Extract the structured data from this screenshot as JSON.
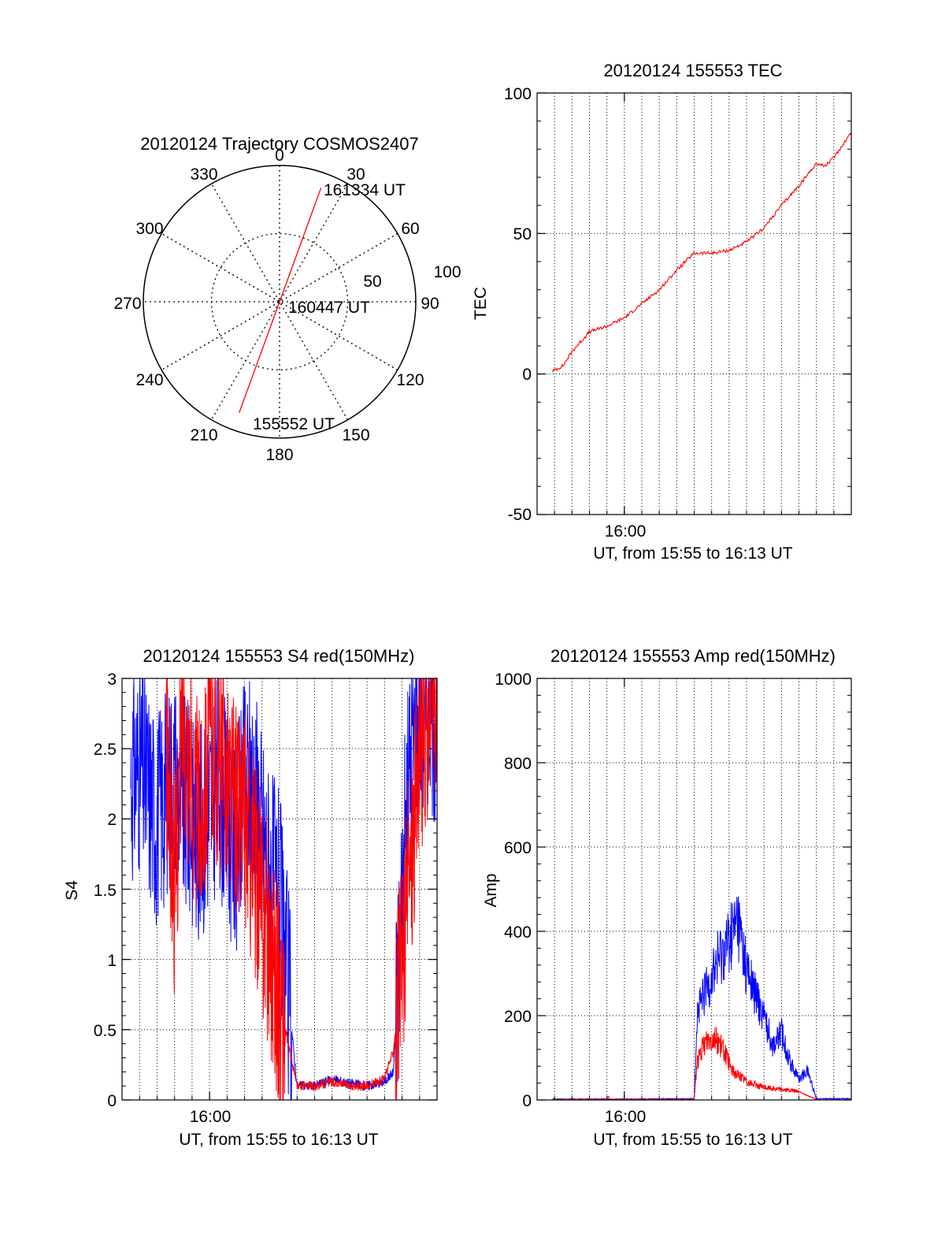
{
  "colors": {
    "series_red": "#ff0000",
    "series_blue": "#0000ff",
    "axis": "#000000",
    "grid": "#000000"
  },
  "chart_data": [
    {
      "type": "polar",
      "title": "20120124 Trajectory COSMOS2407",
      "angle_labels": [
        "0",
        "30",
        "60",
        "90",
        "120",
        "150",
        "180",
        "210",
        "240",
        "270",
        "300",
        "330"
      ],
      "radial_labels": [
        "50",
        "100"
      ],
      "radial_range": [
        0,
        100
      ],
      "grid": true,
      "series": [
        {
          "color": "#ff0000",
          "points": [
            {
              "azimuth": 20,
              "elevation": 10
            },
            {
              "azimuth": 20,
              "elevation": 90
            },
            {
              "azimuth": 200,
              "elevation": 90
            },
            {
              "azimuth": 200,
              "elevation": 12
            }
          ]
        }
      ],
      "annotations": [
        "161334 UT",
        "160447 UT",
        "155552 UT"
      ]
    },
    {
      "type": "line",
      "title": "20120124 155553 TEC",
      "ylabel": "TEC",
      "xlabel": "UT, from 15:55 to 16:13 UT",
      "xlim": [
        "15:55",
        "16:13"
      ],
      "ylim": [
        -50,
        100
      ],
      "yticks": [
        "-50",
        "0",
        "50",
        "100"
      ],
      "xticks": [
        "16:00"
      ],
      "grid": true,
      "series": [
        {
          "color": "#ff0000",
          "x": [
            "15:55:53",
            "15:56:30",
            "15:57:00",
            "15:58:00",
            "15:59:00",
            "16:00:00",
            "16:01:00",
            "16:02:00",
            "16:03:00",
            "16:04:00",
            "16:05:00",
            "16:06:00",
            "16:07:00",
            "16:08:00",
            "16:09:00",
            "16:10:00",
            "16:11:00",
            "16:11:30",
            "16:12:00",
            "16:13:00"
          ],
          "y": [
            1,
            3,
            8,
            15,
            17,
            20,
            25,
            30,
            37,
            43,
            43,
            44,
            47,
            52,
            60,
            67,
            75,
            74,
            77,
            86
          ]
        }
      ]
    },
    {
      "type": "line",
      "title": "20120124 155553 S4 red(150MHz)",
      "ylabel": "S4",
      "xlabel": "UT, from 15:55 to 16:13 UT",
      "xlim": [
        "15:55",
        "16:13"
      ],
      "ylim": [
        0,
        3
      ],
      "yticks": [
        "0",
        "0.5",
        "1",
        "1.5",
        "2",
        "2.5",
        "3"
      ],
      "xticks": [
        "16:00"
      ],
      "grid": true,
      "series": [
        {
          "color": "#0000ff",
          "x": [
            "15:55:30",
            "15:56:00",
            "15:56:30",
            "15:57:00",
            "15:57:30",
            "15:58:00",
            "15:58:30",
            "15:59:00",
            "15:59:30",
            "16:00:00",
            "16:00:30",
            "16:01:00",
            "16:01:30",
            "16:02:00",
            "16:02:30",
            "16:03:00",
            "16:03:30",
            "16:04:00",
            "16:05:00",
            "16:06:00",
            "16:07:00",
            "16:08:00",
            "16:09:00",
            "16:10:00",
            "16:10:30",
            "16:11:00",
            "16:11:30",
            "16:12:00",
            "16:12:30",
            "16:13:00"
          ],
          "y": [
            2.3,
            2.4,
            2.2,
            2.0,
            2.2,
            2.3,
            2.1,
            2.0,
            1.9,
            2.1,
            2.3,
            2.0,
            1.8,
            2.2,
            2.3,
            1.9,
            1.6,
            1.4,
            0.1,
            0.1,
            0.15,
            0.12,
            0.1,
            0.13,
            0.2,
            1.5,
            2.5,
            2.8,
            2.9,
            2.7
          ]
        },
        {
          "color": "#ff0000",
          "x": [
            "15:57:30",
            "15:58:00",
            "15:58:30",
            "15:59:00",
            "15:59:30",
            "16:00:00",
            "16:00:30",
            "16:01:00",
            "16:01:30",
            "16:02:00",
            "16:02:30",
            "16:03:00",
            "16:03:30",
            "16:04:00",
            "16:05:00",
            "16:06:00",
            "16:07:00",
            "16:08:00",
            "16:09:00",
            "16:10:00",
            "16:10:30",
            "16:11:00",
            "16:12:00",
            "16:13:00"
          ],
          "y": [
            2.5,
            1.5,
            2.8,
            2.2,
            2.0,
            2.6,
            2.4,
            2.3,
            2.1,
            2.0,
            1.7,
            1.4,
            1.1,
            0.7,
            0.1,
            0.1,
            0.13,
            0.1,
            0.1,
            0.15,
            0.35,
            1.0,
            2.5,
            2.9
          ]
        }
      ]
    },
    {
      "type": "line",
      "title": "20120124 155553 Amp red(150MHz)",
      "ylabel": "Amp",
      "xlabel": "UT, from 15:55 to 16:13 UT",
      "xlim": [
        "15:55",
        "16:13"
      ],
      "ylim": [
        0,
        1000
      ],
      "yticks": [
        "0",
        "200",
        "400",
        "600",
        "800",
        "1000"
      ],
      "xticks": [
        "16:00"
      ],
      "grid": true,
      "series": [
        {
          "color": "#0000ff",
          "x": [
            "15:55:53",
            "16:00:00",
            "16:04:00",
            "16:04:10",
            "16:04:40",
            "16:05:20",
            "16:06:00",
            "16:06:30",
            "16:07:00",
            "16:07:30",
            "16:08:00",
            "16:08:30",
            "16:09:00",
            "16:09:30",
            "16:10:00",
            "16:10:30",
            "16:11:00",
            "16:13:00"
          ],
          "y": [
            2,
            2,
            3,
            200,
            260,
            330,
            380,
            430,
            310,
            250,
            200,
            130,
            160,
            90,
            50,
            70,
            3,
            3
          ]
        },
        {
          "color": "#ff0000",
          "x": [
            "15:55:53",
            "15:59:00",
            "15:59:05",
            "15:59:10",
            "16:04:00",
            "16:04:10",
            "16:04:40",
            "16:05:10",
            "16:05:40",
            "16:06:10",
            "16:06:40",
            "16:07:10",
            "16:08:00",
            "16:09:00",
            "16:10:00",
            "16:10:30",
            "16:11:00"
          ],
          "y": [
            1,
            1,
            10,
            1,
            1,
            90,
            140,
            150,
            120,
            70,
            55,
            40,
            30,
            25,
            20,
            10,
            2
          ]
        }
      ]
    }
  ]
}
